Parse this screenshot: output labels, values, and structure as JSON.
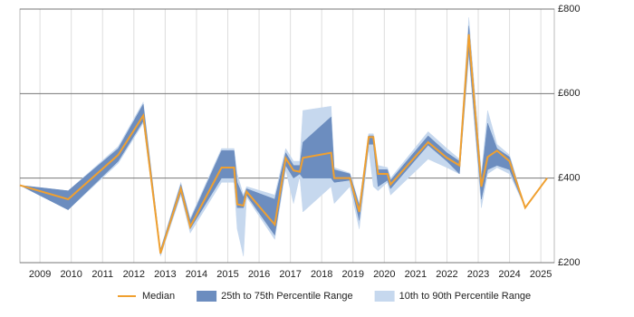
{
  "chart_data": {
    "type": "line-band",
    "x": [
      2008.36,
      2009.9,
      2011.5,
      2012.3,
      2012.85,
      2013.5,
      2013.8,
      2014.8,
      2015.2,
      2015.3,
      2015.5,
      2015.6,
      2016.5,
      2016.85,
      2017.1,
      2017.3,
      2017.4,
      2018.3,
      2018.4,
      2018.9,
      2019.2,
      2019.5,
      2019.65,
      2019.8,
      2020.1,
      2020.2,
      2021.4,
      2022.0,
      2022.4,
      2022.7,
      2023.1,
      2023.3,
      2023.6,
      2024.0,
      2024.5,
      2025.2
    ],
    "series": [
      {
        "name": "10th to 90th Percentile Range",
        "color": "#c6d8ee",
        "low": [
          383,
          325,
          435,
          530,
          215,
          360,
          270,
          390,
          390,
          280,
          215,
          355,
          255,
          420,
          340,
          405,
          320,
          380,
          340,
          380,
          280,
          470,
          380,
          370,
          390,
          360,
          445,
          425,
          410,
          690,
          330,
          410,
          425,
          410,
          330,
          400
        ],
        "high": [
          383,
          370,
          475,
          580,
          232,
          390,
          305,
          470,
          470,
          410,
          360,
          380,
          360,
          470,
          440,
          440,
          560,
          570,
          425,
          412,
          340,
          505,
          505,
          430,
          425,
          400,
          510,
          470,
          445,
          780,
          410,
          560,
          480,
          455,
          330,
          400
        ]
      },
      {
        "name": "25th to 75th Percentile Range",
        "color": "#6c8dbf",
        "low": [
          383,
          325,
          440,
          535,
          220,
          365,
          280,
          400,
          400,
          330,
          330,
          360,
          265,
          430,
          400,
          410,
          400,
          400,
          390,
          395,
          300,
          480,
          480,
          380,
          395,
          375,
          478,
          440,
          410,
          700,
          350,
          420,
          430,
          420,
          330,
          400
        ],
        "high": [
          383,
          370,
          470,
          575,
          230,
          385,
          300,
          465,
          465,
          390,
          355,
          375,
          350,
          460,
          430,
          430,
          485,
          545,
          420,
          410,
          335,
          500,
          500,
          420,
          420,
          395,
          500,
          460,
          440,
          760,
          400,
          530,
          470,
          450,
          330,
          400
        ]
      },
      {
        "name": "Median",
        "color": "#f0a030",
        "values": [
          383,
          350,
          455,
          548,
          222,
          375,
          285,
          425,
          425,
          338,
          335,
          368,
          290,
          447,
          418,
          415,
          448,
          460,
          400,
          400,
          320,
          497,
          497,
          410,
          410,
          385,
          485,
          448,
          430,
          740,
          380,
          450,
          465,
          440,
          330,
          400
        ]
      }
    ],
    "xlim": [
      2008.36,
      2025.43
    ],
    "xticks": [
      2009,
      2010,
      2011,
      2012,
      2013,
      2014,
      2015,
      2016,
      2017,
      2018,
      2019,
      2020,
      2021,
      2022,
      2023,
      2024,
      2025
    ],
    "ylim": [
      200,
      800
    ],
    "yticks": [
      {
        "value": 200,
        "label": "£200"
      },
      {
        "value": 400,
        "label": "£400"
      },
      {
        "value": 600,
        "label": "£600"
      },
      {
        "value": 800,
        "label": "£800"
      }
    ],
    "grid": true
  }
}
